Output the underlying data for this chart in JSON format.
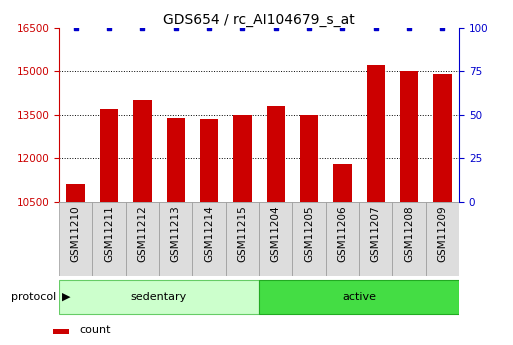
{
  "title": "GDS654 / rc_AI104679_s_at",
  "categories": [
    "GSM11210",
    "GSM11211",
    "GSM11212",
    "GSM11213",
    "GSM11214",
    "GSM11215",
    "GSM11204",
    "GSM11205",
    "GSM11206",
    "GSM11207",
    "GSM11208",
    "GSM11209"
  ],
  "bar_values": [
    11100,
    13700,
    14000,
    13400,
    13350,
    13500,
    13800,
    13500,
    11800,
    15200,
    15000,
    14900
  ],
  "percentile_values": [
    100,
    100,
    100,
    100,
    100,
    100,
    100,
    100,
    100,
    100,
    100,
    100
  ],
  "bar_color": "#cc0000",
  "percentile_color": "#0000cc",
  "ylim_left": [
    10500,
    16500
  ],
  "ylim_right": [
    0,
    100
  ],
  "yticks_left": [
    10500,
    12000,
    13500,
    15000,
    16500
  ],
  "yticks_right": [
    0,
    25,
    50,
    75,
    100
  ],
  "groups": [
    {
      "label": "sedentary",
      "start": 0,
      "end": 6,
      "color": "#ccffcc",
      "edge_color": "#66cc66"
    },
    {
      "label": "active",
      "start": 6,
      "end": 12,
      "color": "#44dd44",
      "edge_color": "#22aa22"
    }
  ],
  "protocol_label": "protocol",
  "title_fontsize": 10,
  "tick_fontsize": 7.5,
  "label_fontsize": 8,
  "background_color": "#ffffff",
  "ticklabel_left_color": "#cc0000",
  "ticklabel_right_color": "#0000cc",
  "cell_bg_color": "#dddddd",
  "cell_edge_color": "#999999"
}
